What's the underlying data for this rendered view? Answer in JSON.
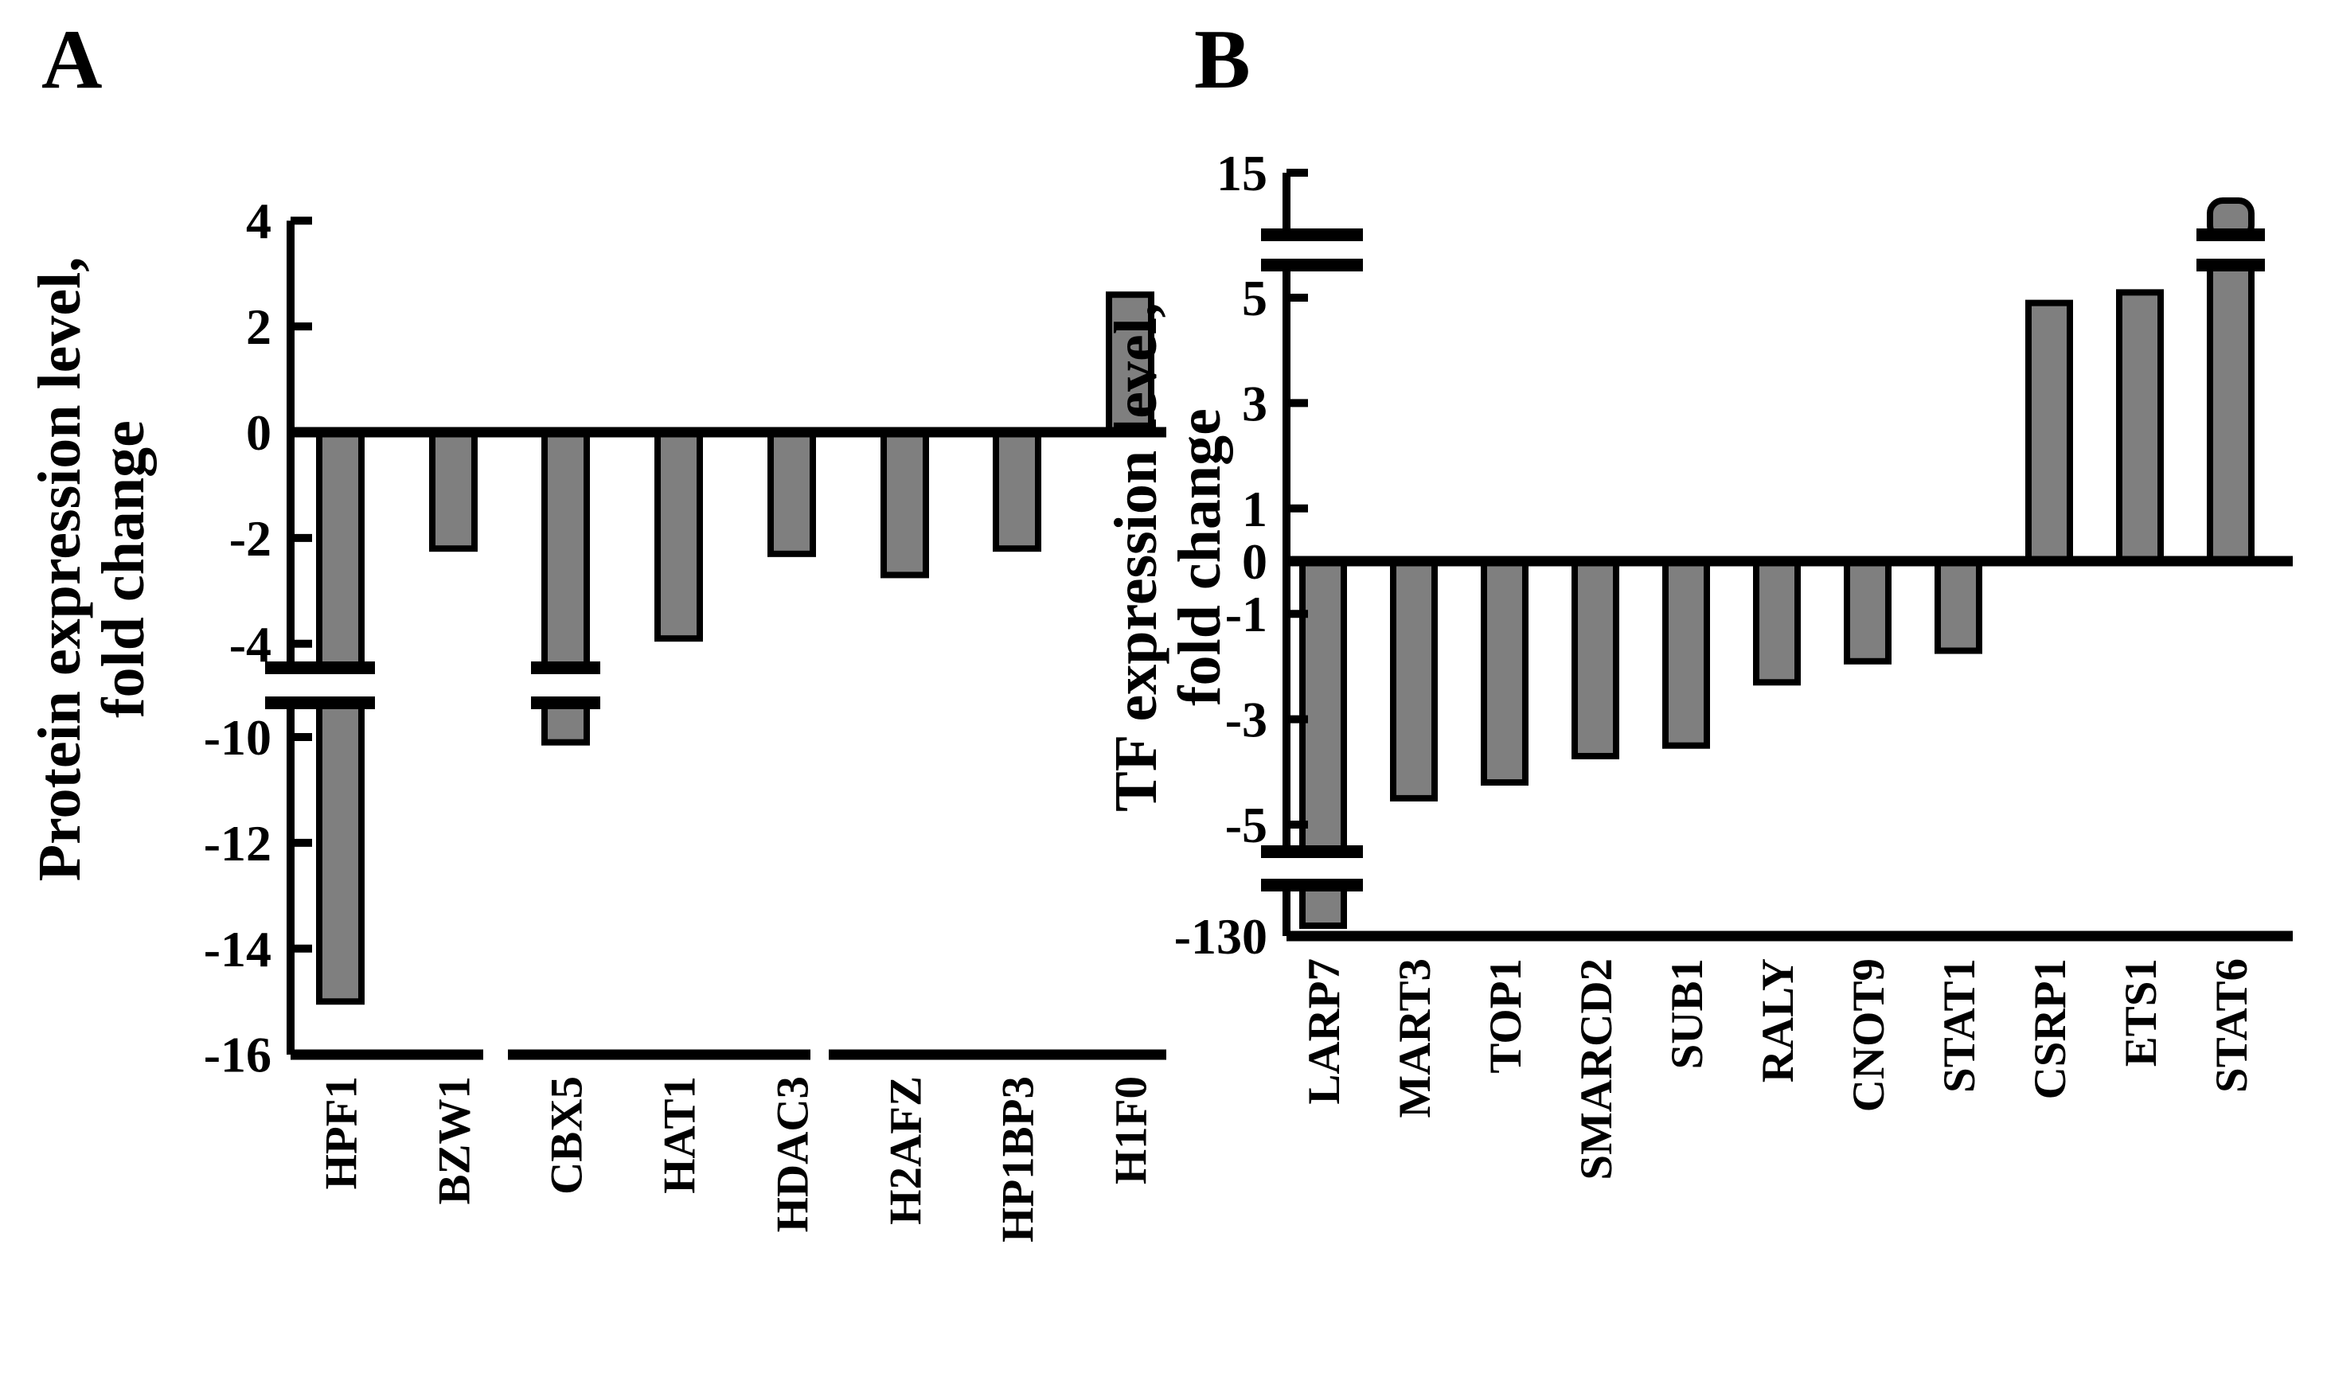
{
  "figure": {
    "background": "#ffffff",
    "bar_fill": "#7f7f7f",
    "line_color": "#000000",
    "panel_a_label": "A",
    "panel_b_label": "B"
  },
  "chart_data": [
    {
      "type": "bar",
      "panel": "A",
      "title": "",
      "xlabel": "",
      "ylabel_line1": "Protein expression level,",
      "ylabel_line2": "fold change",
      "categories": [
        "HPF1",
        "BZW1",
        "CBX5",
        "HAT1",
        "HDAC3",
        "H2AFZ",
        "HP1BP3",
        "H1F0"
      ],
      "values": [
        -15,
        -2.2,
        -10.1,
        -3.9,
        -2.3,
        -2.7,
        -2.2,
        2.6
      ],
      "yticks_upper": [
        4,
        2,
        0,
        -2,
        -4
      ],
      "yticks_lower": [
        -10,
        -12,
        -14,
        -16
      ],
      "ylim_display": [
        -16,
        4
      ],
      "axis_break_omitted_range": [
        -9.3,
        -4.4
      ],
      "bars_crossing_break": [
        "HPF1",
        "CBX5"
      ],
      "bar_color": "#7f7f7f",
      "grid": false,
      "legend": false
    },
    {
      "type": "bar",
      "panel": "B",
      "title": "",
      "xlabel": "",
      "ylabel_line1": "TF expression level,",
      "ylabel_line2": "fold change",
      "categories": [
        "LARP7",
        "MART3",
        "TOP1",
        "SMARCD2",
        "SUB1",
        "RALY",
        "CNOT9",
        "STAT1",
        "CSRP1",
        "ETS1",
        "STAT6"
      ],
      "values": [
        -128,
        -4.5,
        -4.2,
        -3.7,
        -3.5,
        -2.3,
        -1.9,
        -1.7,
        4.9,
        5.1,
        13
      ],
      "yticks_top": [
        15
      ],
      "yticks_mid": [
        5,
        3,
        1,
        0,
        -1,
        -3,
        -5
      ],
      "yticks_bottom": [
        -130
      ],
      "ylim_display": [
        -130,
        15
      ],
      "upper_axis_break_omitted_range": [
        5.6,
        13.5
      ],
      "lower_axis_break_omitted_range": [
        -128,
        -5.8
      ],
      "bars_crossing_break": [
        "LARP7",
        "STAT6"
      ],
      "bar_color": "#7f7f7f",
      "grid": false,
      "legend": false
    }
  ]
}
